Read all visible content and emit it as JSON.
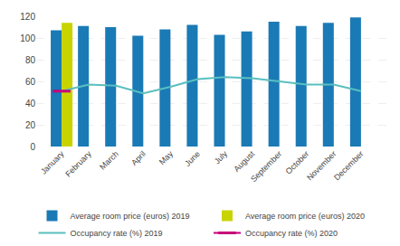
{
  "chart_data": {
    "type": "bar",
    "categories": [
      "January",
      "February",
      "March",
      "April",
      "May",
      "June",
      "July",
      "August",
      "September",
      "October",
      "November",
      "December"
    ],
    "series": [
      {
        "name": "Average room price (euros) 2019",
        "type": "bar",
        "color": "#1a7ab5",
        "values": [
          107,
          111,
          110,
          102,
          108,
          112,
          103,
          106,
          115,
          111,
          114,
          119
        ]
      },
      {
        "name": "Average room price (euros) 2020",
        "type": "bar",
        "color": "#c8d400",
        "values": [
          114,
          null,
          null,
          null,
          null,
          null,
          null,
          null,
          null,
          null,
          null,
          null
        ]
      },
      {
        "name": "Occupancy rate (%) 2019",
        "type": "line",
        "color": "#5abfbf",
        "values": [
          51,
          57,
          56,
          49,
          55,
          62,
          64,
          63,
          60,
          57,
          57,
          51
        ]
      },
      {
        "name": "Occupancy rate (%) 2020",
        "type": "line",
        "color": "#c8007a",
        "marker": "dash",
        "values": [
          51,
          null,
          null,
          null,
          null,
          null,
          null,
          null,
          null,
          null,
          null,
          null
        ]
      }
    ],
    "ylim": [
      0,
      120
    ],
    "yticks": [
      0,
      20,
      40,
      60,
      80,
      100,
      120
    ],
    "grid": true,
    "legend": "bottom"
  }
}
